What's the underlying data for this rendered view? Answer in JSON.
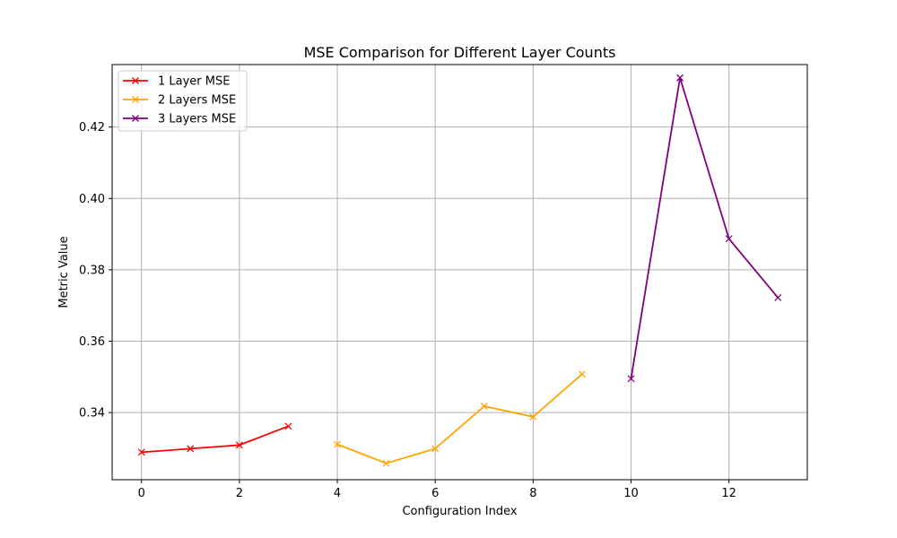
{
  "chart_data": {
    "type": "line",
    "title": "MSE Comparison for Different Layer Counts",
    "xlabel": "Configuration Index",
    "ylabel": "Metric Value",
    "xlim": [
      -0.6,
      13.6
    ],
    "ylim": [
      0.3212,
      0.4375
    ],
    "x_ticks": [
      0,
      2,
      4,
      6,
      8,
      10,
      12
    ],
    "x_tick_labels": [
      "0",
      "2",
      "4",
      "6",
      "8",
      "10",
      "12"
    ],
    "y_ticks": [
      0.34,
      0.36,
      0.38,
      0.4,
      0.42
    ],
    "y_tick_labels": [
      "0.34",
      "0.36",
      "0.38",
      "0.40",
      "0.42"
    ],
    "grid": true,
    "legend_position": "top-left",
    "series": [
      {
        "name": "1 Layer MSE",
        "color": "#ff0000",
        "marker": "x",
        "x": [
          0,
          1,
          2,
          3
        ],
        "y": [
          0.3289,
          0.3299,
          0.3309,
          0.3362
        ]
      },
      {
        "name": "2 Layers MSE",
        "color": "#ffa500",
        "marker": "x",
        "x": [
          4,
          5,
          6,
          7,
          8,
          9
        ],
        "y": [
          0.3311,
          0.3258,
          0.3299,
          0.3418,
          0.3388,
          0.3508
        ]
      },
      {
        "name": "3 Layers MSE",
        "color": "#800080",
        "marker": "x",
        "x": [
          10,
          11,
          12,
          13
        ],
        "y": [
          0.3495,
          0.4338,
          0.3887,
          0.3722
        ]
      }
    ]
  }
}
